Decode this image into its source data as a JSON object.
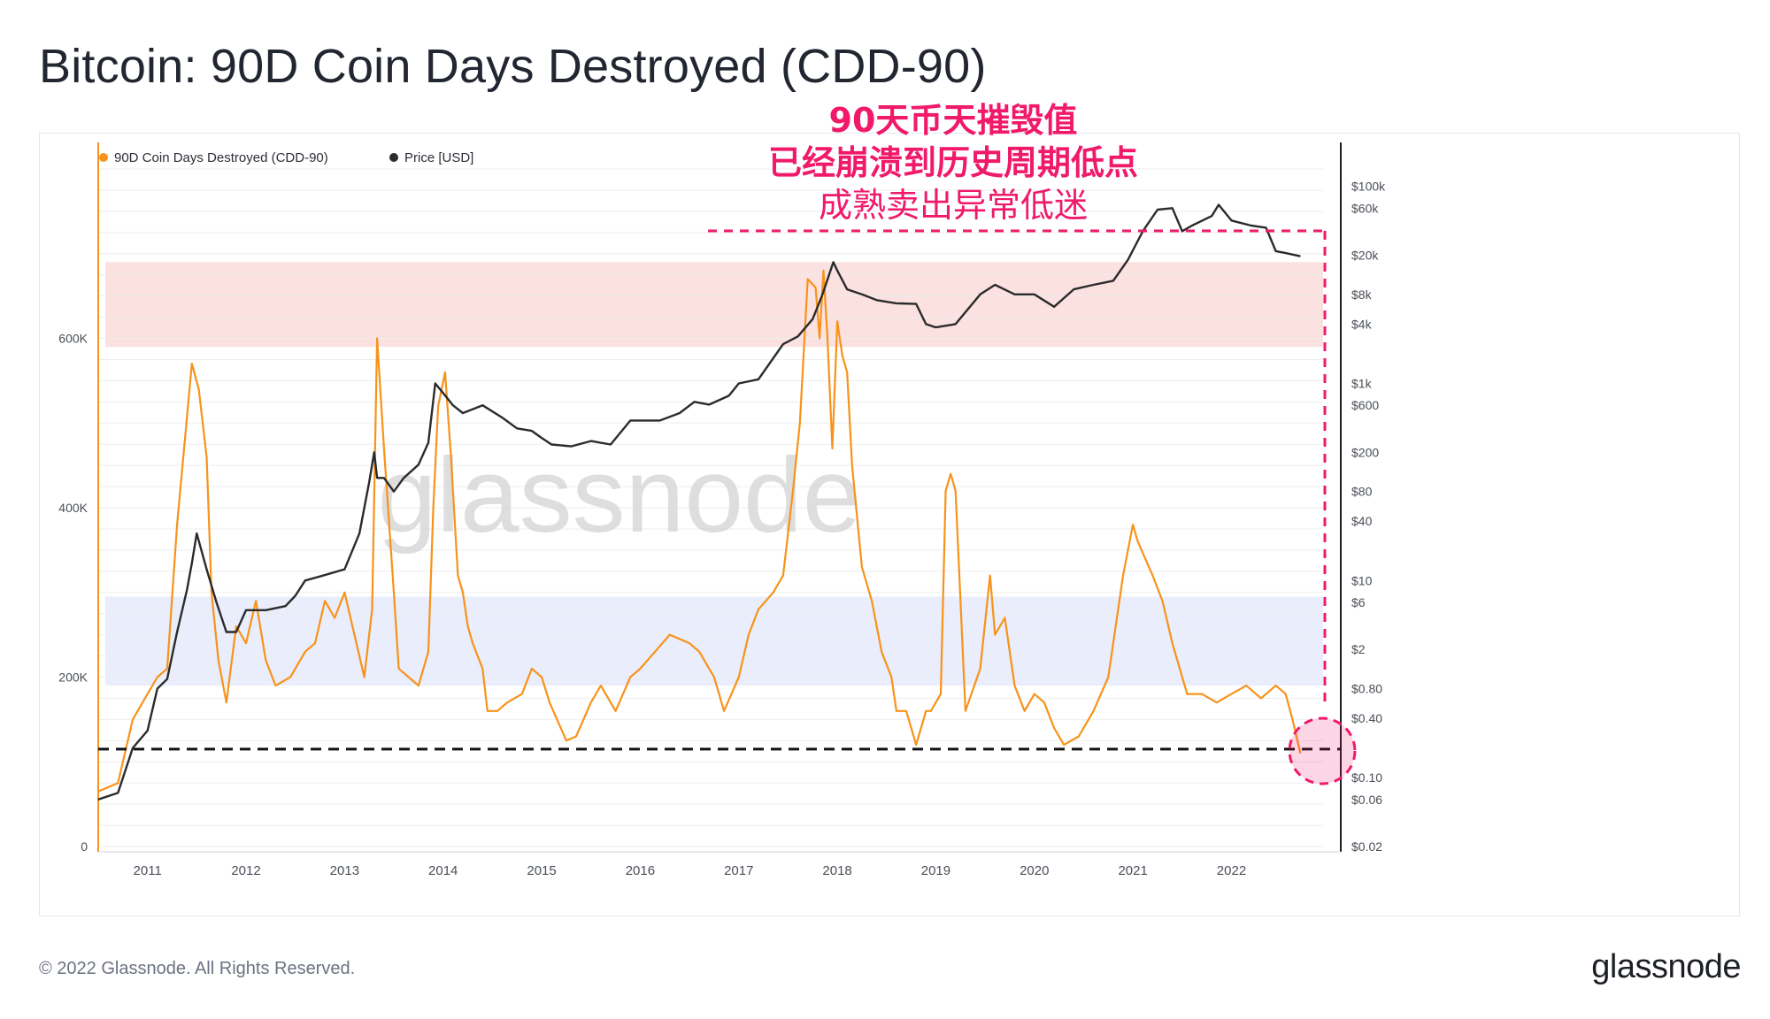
{
  "title": "Bitcoin: 90D Coin Days Destroyed (CDD-90)",
  "footer": "© 2022 Glassnode. All Rights Reserved.",
  "brand": "glassnode",
  "watermark": "glassnode",
  "annotation": {
    "line1": "90天币天摧毁值",
    "line2": "已经崩溃到历史周期低点",
    "line3": "成熟卖出异常低迷",
    "color": "#f0196a"
  },
  "colors": {
    "cdd": "#f7931a",
    "price": "#2b2b2b",
    "high_band": "#fbdcdc",
    "low_band": "#e8ebfb",
    "grid": "#eceef1"
  },
  "chart_data": {
    "type": "line",
    "legend": [
      {
        "name": "90D Coin Days Destroyed (CDD-90)",
        "color": "#f7931a"
      },
      {
        "name": "Price [USD]",
        "color": "#2b2b2b"
      }
    ],
    "legend_position": "top-left",
    "x_ticks": [
      "2011",
      "2012",
      "2013",
      "2014",
      "2015",
      "2016",
      "2017",
      "2018",
      "2019",
      "2020",
      "2021",
      "2022"
    ],
    "left_axis": {
      "ticks": [
        "0",
        "200K",
        "400K",
        "600K"
      ],
      "ylim": [
        0,
        800000
      ]
    },
    "right_axis": {
      "scale": "log",
      "ticks": [
        "$100k",
        "$60k",
        "$20k",
        "$8k",
        "$4k",
        "$1k",
        "$600",
        "$200",
        "$80",
        "$40",
        "$10",
        "$6",
        "$2",
        "$0.80",
        "$0.40",
        "$0.10",
        "$0.06",
        "$0.02"
      ],
      "ylim": [
        0.02,
        150000
      ]
    },
    "bands": {
      "high": [
        590000,
        690000
      ],
      "low": [
        190000,
        295000
      ]
    },
    "reference_line_cdd": 115000,
    "series": [
      {
        "name": "90D Coin Days Destroyed (CDD-90)",
        "axis": "left",
        "x": [
          2010.5,
          2010.7,
          2010.85,
          2011.0,
          2011.1,
          2011.2,
          2011.3,
          2011.45,
          2011.52,
          2011.6,
          2011.65,
          2011.72,
          2011.8,
          2011.9,
          2012.0,
          2012.1,
          2012.2,
          2012.3,
          2012.45,
          2012.6,
          2012.7,
          2012.8,
          2012.9,
          2013.0,
          2013.1,
          2013.2,
          2013.28,
          2013.33,
          2013.4,
          2013.5,
          2013.55,
          2013.65,
          2013.75,
          2013.85,
          2013.9,
          2013.95,
          2014.02,
          2014.08,
          2014.15,
          2014.2,
          2014.25,
          2014.3,
          2014.4,
          2014.45,
          2014.55,
          2014.65,
          2014.8,
          2014.9,
          2015.0,
          2015.08,
          2015.25,
          2015.35,
          2015.5,
          2015.6,
          2015.75,
          2015.9,
          2016.0,
          2016.15,
          2016.3,
          2016.5,
          2016.6,
          2016.75,
          2016.85,
          2017.0,
          2017.1,
          2017.2,
          2017.35,
          2017.45,
          2017.55,
          2017.62,
          2017.7,
          2017.78,
          2017.82,
          2017.86,
          2017.9,
          2017.95,
          2018.0,
          2018.05,
          2018.1,
          2018.15,
          2018.25,
          2018.35,
          2018.45,
          2018.55,
          2018.6,
          2018.7,
          2018.8,
          2018.9,
          2018.95,
          2019.0,
          2019.05,
          2019.1,
          2019.15,
          2019.2,
          2019.3,
          2019.45,
          2019.55,
          2019.6,
          2019.7,
          2019.8,
          2019.9,
          2020.0,
          2020.1,
          2020.2,
          2020.3,
          2020.45,
          2020.6,
          2020.75,
          2020.9,
          2021.0,
          2021.05,
          2021.2,
          2021.3,
          2021.4,
          2021.55,
          2021.7,
          2021.85,
          2022.0,
          2022.15,
          2022.3,
          2022.45,
          2022.55,
          2022.62,
          2022.7
        ],
        "y": [
          65000,
          75000,
          150000,
          180000,
          200000,
          210000,
          380000,
          570000,
          540000,
          460000,
          300000,
          220000,
          170000,
          260000,
          240000,
          290000,
          220000,
          190000,
          200000,
          230000,
          240000,
          290000,
          270000,
          300000,
          250000,
          200000,
          280000,
          600000,
          470000,
          300000,
          210000,
          200000,
          190000,
          230000,
          400000,
          520000,
          560000,
          460000,
          320000,
          300000,
          260000,
          240000,
          210000,
          160000,
          160000,
          170000,
          180000,
          210000,
          200000,
          170000,
          125000,
          130000,
          170000,
          190000,
          160000,
          200000,
          210000,
          230000,
          250000,
          240000,
          230000,
          200000,
          160000,
          200000,
          250000,
          280000,
          300000,
          320000,
          420000,
          500000,
          670000,
          660000,
          600000,
          680000,
          600000,
          470000,
          620000,
          580000,
          560000,
          450000,
          330000,
          290000,
          230000,
          200000,
          160000,
          160000,
          120000,
          160000,
          160000,
          170000,
          180000,
          420000,
          440000,
          420000,
          160000,
          210000,
          320000,
          250000,
          270000,
          190000,
          160000,
          180000,
          170000,
          140000,
          120000,
          130000,
          160000,
          200000,
          320000,
          380000,
          360000,
          320000,
          290000,
          240000,
          180000,
          180000,
          170000,
          180000,
          190000,
          175000,
          190000,
          180000,
          150000,
          110000
        ]
      },
      {
        "name": "Price [USD]",
        "axis": "right",
        "x": [
          2010.5,
          2010.7,
          2010.85,
          2011.0,
          2011.1,
          2011.2,
          2011.3,
          2011.4,
          2011.45,
          2011.5,
          2011.6,
          2011.7,
          2011.8,
          2011.9,
          2012.0,
          2012.2,
          2012.4,
          2012.5,
          2012.6,
          2012.75,
          2013.0,
          2013.15,
          2013.25,
          2013.3,
          2013.33,
          2013.4,
          2013.5,
          2013.6,
          2013.75,
          2013.85,
          2013.92,
          2014.0,
          2014.1,
          2014.2,
          2014.4,
          2014.6,
          2014.75,
          2014.9,
          2015.0,
          2015.1,
          2015.3,
          2015.5,
          2015.7,
          2015.9,
          2016.0,
          2016.2,
          2016.4,
          2016.55,
          2016.7,
          2016.9,
          2017.0,
          2017.2,
          2017.35,
          2017.45,
          2017.6,
          2017.75,
          2017.85,
          2017.96,
          2018.0,
          2018.1,
          2018.25,
          2018.4,
          2018.6,
          2018.8,
          2018.9,
          2019.0,
          2019.2,
          2019.45,
          2019.6,
          2019.8,
          2020.0,
          2020.2,
          2020.4,
          2020.6,
          2020.8,
          2020.95,
          2021.1,
          2021.25,
          2021.4,
          2021.5,
          2021.6,
          2021.8,
          2021.87,
          2022.0,
          2022.2,
          2022.35,
          2022.45,
          2022.55,
          2022.7
        ],
        "y": [
          0.06,
          0.07,
          0.2,
          0.3,
          0.8,
          1.0,
          3.0,
          8.0,
          15.0,
          30.0,
          13.0,
          6.0,
          3.0,
          3.0,
          5.0,
          5.0,
          5.5,
          7.0,
          10.0,
          11.0,
          13.0,
          30.0,
          100.0,
          200.0,
          110.0,
          110.0,
          80.0,
          110.0,
          150.0,
          250.0,
          1000.0,
          800.0,
          600.0,
          500.0,
          600.0,
          450.0,
          350.0,
          330.0,
          280.0,
          240.0,
          230.0,
          260.0,
          240.0,
          420.0,
          420.0,
          420.0,
          500.0,
          650.0,
          610.0,
          750.0,
          1000.0,
          1100.0,
          1800.0,
          2500.0,
          3000.0,
          4500.0,
          8000.0,
          17000.0,
          14000.0,
          9000.0,
          8000.0,
          7000.0,
          6500.0,
          6400.0,
          4000.0,
          3700.0,
          4000.0,
          8000.0,
          10000.0,
          8000.0,
          8000.0,
          6000.0,
          9000.0,
          10000.0,
          11000.0,
          18000.0,
          35000.0,
          58000.0,
          60000.0,
          35000.0,
          40000.0,
          50000.0,
          65000.0,
          45000.0,
          40000.0,
          38000.0,
          22000.0,
          21000.0,
          19500.0
        ]
      }
    ]
  }
}
